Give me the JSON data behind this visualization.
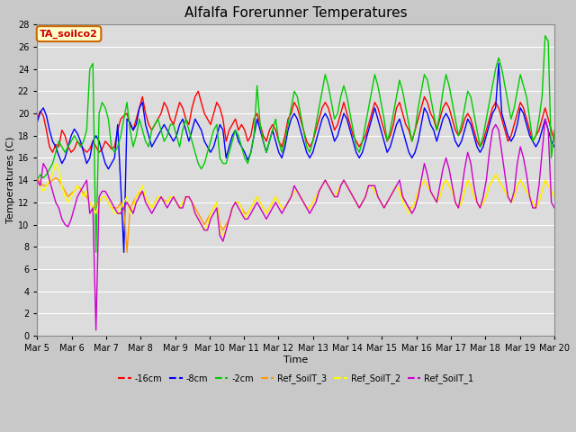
{
  "title": "Alfalfa Forerunner Temperatures",
  "xlabel": "Time",
  "ylabel": "Temperatures (C)",
  "annotation": "TA_soilco2",
  "ylim": [
    0,
    28
  ],
  "xlim": [
    0,
    15
  ],
  "yticks": [
    0,
    2,
    4,
    6,
    8,
    10,
    12,
    14,
    16,
    18,
    20,
    22,
    24,
    26,
    28
  ],
  "xtick_labels": [
    "Mar 5",
    "Mar 6",
    "Mar 7",
    "Mar 8",
    "Mar 9",
    "Mar 10",
    "Mar 11",
    "Mar 12",
    "Mar 13",
    "Mar 14",
    "Mar 15",
    "Mar 16",
    "Mar 17",
    "Mar 18",
    "Mar 19",
    "Mar 20"
  ],
  "series": {
    "neg16cm": {
      "color": "#ff0000",
      "label": "-16cm",
      "y": [
        19.5,
        20.2,
        19.8,
        18.5,
        17.0,
        16.5,
        17.2,
        17.0,
        18.5,
        18.0,
        17.0,
        16.5,
        16.8,
        17.5,
        17.2,
        16.8,
        16.5,
        16.8,
        17.5,
        17.0,
        16.5,
        16.8,
        17.5,
        17.2,
        16.8,
        17.0,
        18.5,
        19.5,
        19.8,
        20.0,
        19.0,
        18.5,
        19.5,
        20.5,
        21.5,
        20.0,
        19.0,
        18.5,
        19.0,
        19.5,
        20.0,
        21.0,
        20.5,
        19.5,
        19.0,
        20.0,
        21.0,
        20.5,
        19.5,
        19.0,
        20.5,
        21.5,
        22.0,
        21.0,
        20.0,
        19.5,
        19.0,
        20.0,
        21.0,
        20.5,
        19.5,
        17.5,
        18.5,
        19.0,
        19.5,
        18.5,
        19.0,
        18.5,
        17.5,
        18.0,
        19.5,
        20.0,
        19.0,
        18.0,
        17.5,
        18.5,
        19.0,
        18.5,
        17.5,
        17.0,
        18.0,
        19.5,
        20.0,
        21.0,
        20.5,
        19.5,
        18.5,
        17.5,
        17.0,
        17.5,
        18.5,
        19.5,
        20.5,
        21.0,
        20.5,
        19.5,
        18.5,
        19.0,
        20.0,
        21.0,
        20.0,
        19.0,
        18.0,
        17.5,
        17.0,
        17.5,
        18.0,
        19.0,
        20.0,
        21.0,
        20.5,
        19.5,
        18.5,
        17.5,
        18.0,
        19.0,
        20.5,
        21.0,
        20.0,
        19.0,
        18.5,
        17.5,
        18.5,
        19.5,
        20.5,
        21.5,
        21.0,
        20.0,
        19.5,
        18.5,
        19.5,
        20.5,
        21.0,
        20.5,
        19.5,
        18.5,
        18.0,
        18.5,
        19.5,
        20.0,
        19.5,
        18.5,
        17.5,
        17.0,
        17.5,
        18.5,
        19.5,
        20.5,
        21.0,
        20.5,
        19.5,
        18.5,
        17.5,
        18.0,
        19.0,
        20.0,
        21.0,
        20.5,
        19.5,
        18.5,
        17.5,
        18.0,
        18.5,
        19.5,
        20.5,
        19.5,
        18.5,
        17.5
      ]
    },
    "neg8cm": {
      "color": "#0000ff",
      "label": "-8cm",
      "y": [
        19.2,
        20.1,
        20.5,
        19.8,
        18.5,
        17.5,
        17.0,
        16.2,
        15.5,
        16.0,
        17.0,
        18.0,
        18.6,
        18.2,
        17.5,
        16.5,
        15.5,
        16.0,
        17.5,
        18.0,
        17.5,
        16.5,
        15.5,
        15.0,
        15.5,
        16.0,
        19.0,
        13.5,
        7.5,
        19.5,
        19.2,
        18.5,
        19.0,
        20.5,
        21.0,
        19.0,
        18.0,
        17.0,
        17.5,
        18.0,
        18.5,
        19.0,
        18.5,
        18.0,
        17.5,
        18.0,
        19.0,
        19.5,
        18.5,
        17.5,
        18.5,
        19.5,
        19.0,
        18.5,
        17.5,
        17.0,
        16.5,
        17.0,
        18.0,
        19.0,
        18.5,
        16.0,
        17.0,
        18.0,
        18.5,
        17.5,
        17.0,
        16.5,
        15.8,
        16.5,
        18.0,
        19.5,
        18.5,
        17.5,
        16.5,
        17.5,
        18.5,
        17.5,
        16.5,
        16.0,
        17.0,
        18.5,
        19.5,
        20.0,
        19.5,
        18.5,
        17.5,
        16.5,
        16.0,
        16.5,
        17.5,
        18.5,
        19.5,
        20.0,
        19.5,
        18.5,
        17.5,
        18.0,
        19.0,
        20.0,
        19.5,
        18.5,
        17.5,
        16.5,
        16.0,
        16.5,
        17.5,
        18.5,
        19.5,
        20.5,
        19.5,
        18.5,
        17.5,
        16.5,
        17.0,
        18.0,
        19.0,
        19.5,
        18.5,
        17.5,
        16.5,
        16.0,
        16.5,
        17.5,
        19.0,
        20.5,
        20.0,
        19.0,
        18.5,
        17.5,
        18.5,
        19.5,
        20.0,
        19.5,
        18.5,
        17.5,
        17.0,
        17.5,
        18.5,
        19.5,
        19.0,
        18.0,
        17.0,
        16.5,
        17.0,
        18.0,
        19.0,
        20.0,
        20.5,
        24.5,
        20.0,
        19.0,
        18.0,
        17.5,
        18.0,
        19.0,
        20.5,
        20.0,
        19.0,
        18.0,
        17.5,
        17.0,
        17.5,
        18.5,
        19.5,
        18.5,
        17.5,
        17.0
      ]
    },
    "neg2cm": {
      "color": "#00cc00",
      "label": "-2cm",
      "y": [
        14.0,
        14.5,
        14.2,
        14.5,
        15.0,
        15.5,
        16.5,
        17.5,
        17.0,
        16.5,
        17.0,
        17.5,
        18.0,
        17.5,
        17.0,
        17.5,
        18.5,
        24.0,
        24.5,
        7.5,
        20.0,
        21.0,
        20.5,
        19.5,
        17.0,
        16.5,
        17.0,
        18.0,
        19.5,
        21.0,
        18.5,
        17.0,
        18.0,
        19.5,
        18.5,
        17.5,
        17.0,
        18.5,
        19.0,
        19.5,
        18.5,
        17.5,
        18.0,
        19.0,
        19.0,
        18.0,
        17.0,
        18.5,
        19.5,
        18.5,
        17.5,
        16.5,
        15.5,
        15.0,
        15.5,
        16.5,
        17.5,
        18.5,
        19.0,
        16.0,
        15.5,
        15.5,
        16.5,
        17.5,
        18.5,
        18.0,
        17.0,
        16.0,
        15.5,
        16.5,
        18.0,
        22.5,
        19.0,
        17.5,
        16.5,
        17.5,
        18.5,
        19.5,
        17.5,
        16.5,
        17.5,
        19.0,
        20.5,
        22.0,
        21.5,
        20.0,
        18.5,
        17.0,
        16.5,
        17.5,
        19.0,
        20.5,
        22.0,
        23.5,
        22.5,
        21.0,
        19.5,
        20.0,
        21.5,
        22.5,
        21.5,
        20.0,
        18.5,
        17.0,
        16.5,
        17.5,
        19.0,
        20.5,
        22.0,
        23.5,
        22.5,
        21.0,
        19.5,
        17.5,
        18.5,
        20.0,
        21.5,
        23.0,
        22.0,
        20.5,
        19.0,
        17.5,
        18.5,
        20.5,
        22.0,
        23.5,
        23.0,
        21.5,
        20.0,
        18.5,
        20.0,
        22.0,
        23.5,
        22.5,
        21.0,
        19.5,
        18.0,
        19.0,
        20.5,
        22.0,
        21.5,
        20.0,
        18.5,
        17.0,
        18.0,
        19.5,
        21.0,
        22.5,
        24.0,
        25.0,
        24.0,
        22.5,
        21.0,
        19.5,
        20.5,
        22.0,
        23.5,
        22.5,
        21.5,
        19.5,
        17.5,
        18.0,
        19.5,
        21.5,
        27.0,
        26.5,
        16.0,
        18.5
      ]
    },
    "ref3": {
      "color": "#ff9900",
      "label": "Ref_SoilT_3",
      "y": [
        14.2,
        13.8,
        13.5,
        13.5,
        13.8,
        14.0,
        14.2,
        14.0,
        13.5,
        13.0,
        12.5,
        12.8,
        13.0,
        13.5,
        13.2,
        12.8,
        12.5,
        12.0,
        11.5,
        11.8,
        12.0,
        12.5,
        12.5,
        12.0,
        11.5,
        11.5,
        11.5,
        12.0,
        11.5,
        7.5,
        11.5,
        12.0,
        12.5,
        12.8,
        13.0,
        12.5,
        12.0,
        11.5,
        12.0,
        12.5,
        12.5,
        12.2,
        12.0,
        12.5,
        12.5,
        12.0,
        11.5,
        12.0,
        12.5,
        12.5,
        12.0,
        11.5,
        11.0,
        10.5,
        10.0,
        10.5,
        11.0,
        11.5,
        12.0,
        10.0,
        9.5,
        10.0,
        10.5,
        11.5,
        12.0,
        12.0,
        11.5,
        11.0,
        11.0,
        11.5,
        12.0,
        12.5,
        12.0,
        11.5,
        11.0,
        11.5,
        12.0,
        12.5,
        12.0,
        11.5,
        11.5,
        12.0,
        12.5,
        13.0,
        13.0,
        12.5,
        12.0,
        11.5,
        11.5,
        12.0,
        12.5,
        13.0,
        13.5,
        14.0,
        13.5,
        13.0,
        12.5,
        13.0,
        13.5,
        14.0,
        13.5,
        13.0,
        12.5,
        12.0,
        11.5,
        12.0,
        12.5,
        13.5,
        13.5,
        13.0,
        12.5,
        12.0,
        11.5,
        12.0,
        12.5,
        13.0,
        13.5,
        13.0,
        12.5,
        12.0,
        11.5,
        11.5,
        12.0,
        13.0,
        13.5,
        14.0,
        13.5,
        13.0,
        12.5,
        12.0,
        12.5,
        13.5,
        14.0,
        13.5,
        13.0,
        12.0,
        11.5,
        12.0,
        13.0,
        14.0,
        13.5,
        12.5,
        12.0,
        11.5,
        12.0,
        12.5,
        13.5,
        14.0,
        14.5,
        14.0,
        13.5,
        13.0,
        12.5,
        12.0,
        12.5,
        13.5,
        14.0,
        13.5,
        13.0,
        12.5,
        12.0,
        11.5,
        12.0,
        13.0,
        14.0,
        13.5,
        13.0,
        12.5
      ]
    },
    "ref2": {
      "color": "#ffff00",
      "label": "Ref_SoilT_2",
      "y": [
        14.0,
        13.5,
        13.0,
        13.5,
        14.0,
        14.5,
        15.5,
        15.0,
        13.5,
        12.5,
        12.0,
        12.5,
        13.0,
        13.5,
        13.0,
        12.5,
        13.0,
        12.0,
        11.5,
        11.0,
        12.0,
        12.5,
        12.5,
        12.0,
        11.5,
        11.0,
        11.0,
        11.5,
        12.0,
        12.5,
        11.0,
        11.5,
        12.5,
        13.0,
        13.5,
        12.5,
        12.0,
        11.5,
        12.0,
        12.5,
        12.5,
        12.0,
        12.0,
        12.5,
        12.5,
        12.0,
        11.5,
        12.0,
        12.5,
        12.5,
        12.0,
        11.0,
        10.5,
        10.0,
        9.5,
        10.0,
        11.0,
        11.5,
        12.0,
        9.5,
        9.0,
        9.5,
        10.5,
        11.5,
        12.0,
        12.0,
        11.5,
        10.5,
        11.0,
        11.5,
        12.0,
        12.5,
        12.0,
        11.5,
        11.0,
        11.5,
        12.0,
        12.5,
        12.0,
        11.5,
        11.5,
        12.0,
        12.5,
        13.0,
        13.0,
        12.5,
        12.0,
        11.5,
        11.5,
        12.0,
        12.5,
        13.0,
        13.5,
        14.0,
        13.5,
        13.0,
        12.5,
        13.0,
        13.5,
        14.0,
        13.5,
        13.0,
        12.5,
        12.0,
        11.5,
        12.0,
        12.5,
        13.5,
        13.5,
        13.0,
        12.5,
        12.0,
        11.5,
        12.0,
        12.5,
        13.0,
        13.5,
        13.0,
        12.0,
        11.5,
        11.0,
        11.5,
        12.0,
        13.0,
        13.5,
        14.0,
        13.5,
        13.0,
        12.5,
        12.0,
        12.5,
        13.5,
        14.0,
        13.5,
        13.0,
        12.0,
        11.5,
        12.0,
        13.0,
        14.0,
        13.5,
        12.5,
        12.0,
        11.5,
        12.0,
        12.5,
        13.5,
        14.0,
        14.5,
        14.0,
        13.5,
        13.0,
        12.5,
        12.0,
        12.5,
        13.5,
        14.0,
        13.5,
        13.0,
        12.5,
        12.0,
        11.5,
        12.0,
        13.0,
        14.0,
        13.5,
        13.0,
        12.5
      ]
    },
    "ref1": {
      "color": "#cc00cc",
      "label": "Ref_SoilT_1",
      "y": [
        14.0,
        13.5,
        15.5,
        15.0,
        14.0,
        13.0,
        12.0,
        11.5,
        10.5,
        10.0,
        9.8,
        10.5,
        11.5,
        12.5,
        13.0,
        13.5,
        14.0,
        11.0,
        11.5,
        0.5,
        12.5,
        13.0,
        13.0,
        12.5,
        12.0,
        11.5,
        11.0,
        11.0,
        11.5,
        12.0,
        11.5,
        11.0,
        12.0,
        12.5,
        13.0,
        12.0,
        11.5,
        11.0,
        11.5,
        12.0,
        12.5,
        12.0,
        11.5,
        12.0,
        12.5,
        12.0,
        11.5,
        11.5,
        12.5,
        12.5,
        12.0,
        11.0,
        10.5,
        10.0,
        9.5,
        9.5,
        10.5,
        11.0,
        11.5,
        9.0,
        8.5,
        9.5,
        10.5,
        11.5,
        12.0,
        11.5,
        11.0,
        10.5,
        10.5,
        11.0,
        11.5,
        12.0,
        11.5,
        11.0,
        10.5,
        11.0,
        11.5,
        12.0,
        11.5,
        11.0,
        11.5,
        12.0,
        12.5,
        13.5,
        13.0,
        12.5,
        12.0,
        11.5,
        11.0,
        11.5,
        12.0,
        13.0,
        13.5,
        14.0,
        13.5,
        13.0,
        12.5,
        12.5,
        13.5,
        14.0,
        13.5,
        13.0,
        12.5,
        12.0,
        11.5,
        12.0,
        12.5,
        13.5,
        13.5,
        13.5,
        12.5,
        12.0,
        11.5,
        12.0,
        12.5,
        13.0,
        13.5,
        14.0,
        12.5,
        12.0,
        11.5,
        11.0,
        11.5,
        12.5,
        14.0,
        15.5,
        14.5,
        13.0,
        12.5,
        12.0,
        13.5,
        15.0,
        16.0,
        15.0,
        13.5,
        12.0,
        11.5,
        13.0,
        15.0,
        16.5,
        15.5,
        13.5,
        12.0,
        11.5,
        12.5,
        14.0,
        16.5,
        18.5,
        19.0,
        18.5,
        16.5,
        14.5,
        12.5,
        12.0,
        13.0,
        15.5,
        17.0,
        16.0,
        14.5,
        12.5,
        11.5,
        11.5,
        13.5,
        16.5,
        19.5,
        18.5,
        12.0,
        11.5
      ]
    }
  },
  "background_color": "#e8e8e8",
  "plot_bg_color": "#dcdcdc",
  "grid_color": "#ffffff",
  "fig_bg_color": "#c8c8c8",
  "title_fontsize": 11,
  "label_fontsize": 8,
  "tick_fontsize": 7,
  "annotation_facecolor": "#ffffcc",
  "annotation_edgecolor": "#cc6600",
  "annotation_textcolor": "#cc0000"
}
